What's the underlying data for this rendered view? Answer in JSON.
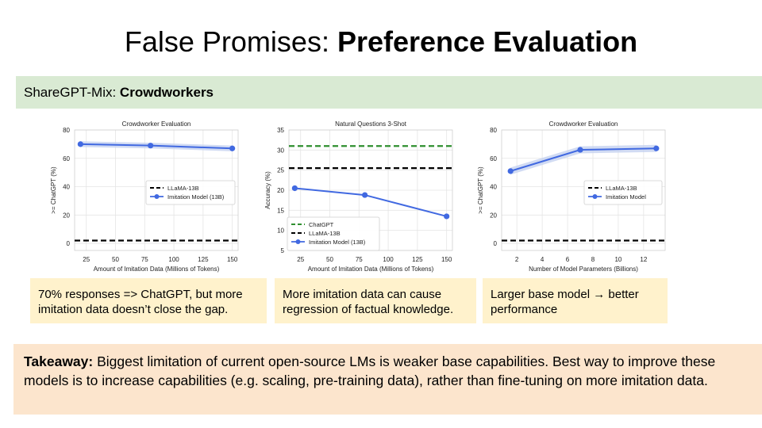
{
  "slide": {
    "title_normal": "False Promises: ",
    "title_bold": "Preference Evaluation",
    "banner_normal": "ShareGPT-Mix: ",
    "banner_bold": "Crowdworkers",
    "notes": [
      "70% responses => ChatGPT, but more imitation data doesn’t close the gap.",
      "More imitation data can cause regression of factual knowledge.",
      "Larger base model → better performance"
    ],
    "takeaway_label": "Takeaway:",
    "takeaway_text": " Biggest limitation of current open-source LMs is weaker base capabilities. Best way to improve these models is to increase capabilities (e.g. scaling, pre-training data), rather than fine-tuning on more imitation data."
  },
  "colors": {
    "imitation": "#4169e1",
    "band": "#c5d2f0",
    "llama": "#000000",
    "chatgpt": "#2f8f2f",
    "grid": "#e5e5e5"
  },
  "chart_data": [
    {
      "type": "line",
      "title": "Crowdworker Evaluation",
      "xlabel": "Amount of Imitation Data (Millions of Tokens)",
      "ylabel": ">= ChatGPT (%)",
      "xlim": [
        15,
        155
      ],
      "ylim": [
        -5,
        80
      ],
      "xticks": [
        25,
        50,
        75,
        100,
        125,
        150
      ],
      "yticks": [
        0,
        20,
        40,
        60,
        80
      ],
      "grid": true,
      "legend_position": "center-right",
      "series": [
        {
          "name": "LLaMA-13B",
          "kind": "hline",
          "y": 2,
          "style": "dashed",
          "color": "#000000"
        },
        {
          "name": "Imitation Model (13B)",
          "kind": "line",
          "x": [
            20,
            80,
            150
          ],
          "y": [
            70,
            69,
            67
          ],
          "band": 2,
          "color": "#4169e1"
        }
      ]
    },
    {
      "type": "line",
      "title": "Natural Questions 3-Shot",
      "xlabel": "Amount of Imitation Data (Millions of Tokens)",
      "ylabel": "Accuracy (%)",
      "xlim": [
        15,
        155
      ],
      "ylim": [
        5,
        35
      ],
      "xticks": [
        25,
        50,
        75,
        100,
        125,
        150
      ],
      "yticks": [
        5,
        10,
        15,
        20,
        25,
        30,
        35
      ],
      "grid": true,
      "legend_position": "lower-left",
      "series": [
        {
          "name": "ChatGPT",
          "kind": "hline",
          "y": 31,
          "style": "dashed",
          "color": "#2f8f2f"
        },
        {
          "name": "LLaMA-13B",
          "kind": "hline",
          "y": 25.5,
          "style": "dashed",
          "color": "#000000"
        },
        {
          "name": "Imitation Model (13B)",
          "kind": "line",
          "x": [
            20,
            80,
            150
          ],
          "y": [
            20.5,
            18.8,
            13.5
          ],
          "color": "#4169e1"
        }
      ]
    },
    {
      "type": "line",
      "title": "Crowdworker Evaluation",
      "xlabel": "Number of Model Parameters (Billions)",
      "ylabel": ">= ChatGPT (%)",
      "xlim": [
        0.8,
        13.7
      ],
      "ylim": [
        -5,
        80
      ],
      "xticks": [
        2,
        4,
        6,
        8,
        10,
        12
      ],
      "yticks": [
        0,
        20,
        40,
        60,
        80
      ],
      "grid": true,
      "legend_position": "center-right",
      "series": [
        {
          "name": "LLaMA-13B",
          "kind": "hline",
          "y": 2,
          "style": "dashed",
          "color": "#000000"
        },
        {
          "name": "Imitation Model",
          "kind": "line",
          "x": [
            1.5,
            7,
            13
          ],
          "y": [
            51,
            66,
            67
          ],
          "band": 2.5,
          "color": "#4169e1"
        }
      ]
    }
  ]
}
